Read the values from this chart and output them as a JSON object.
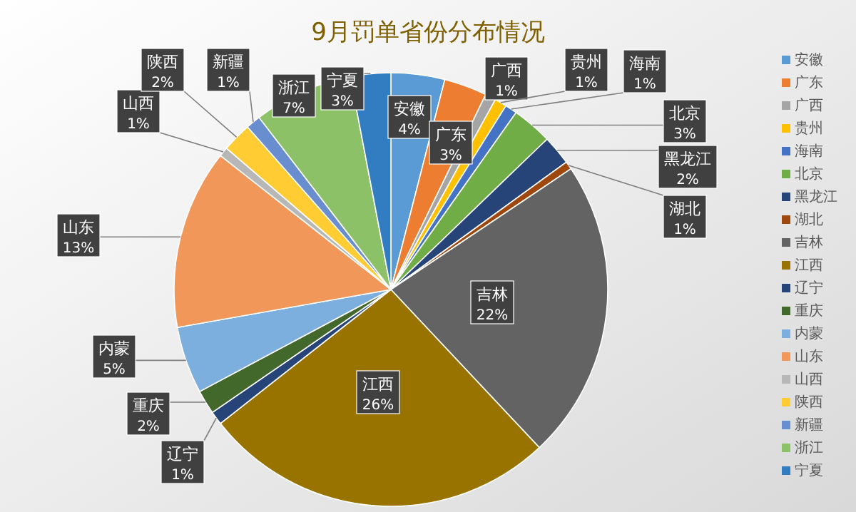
{
  "chart_data": {
    "type": "pie",
    "title": "9月罚单省份分布情况",
    "categories": [
      "安徽",
      "广东",
      "广西",
      "贵州",
      "海南",
      "北京",
      "黑龙江",
      "湖北",
      "吉林",
      "江西",
      "辽宁",
      "重庆",
      "内蒙",
      "山东",
      "山西",
      "陕西",
      "新疆",
      "浙江",
      "宁夏"
    ],
    "values": [
      4.0,
      3.2,
      0.8,
      0.9,
      0.9,
      3.0,
      2.2,
      0.6,
      22.4,
      26.4,
      1.0,
      1.8,
      5.0,
      13.4,
      0.7,
      2.2,
      1.1,
      7.4,
      3.0
    ],
    "value_labels": [
      "4%",
      "3%",
      "1%",
      "1%",
      "1%",
      "3%",
      "2%",
      "1%",
      "22%",
      "26%",
      "1%",
      "2%",
      "5%",
      "13%",
      "1%",
      "2%",
      "1%",
      "7%",
      "3%"
    ],
    "colors": [
      "#5b9bd5",
      "#ed7d31",
      "#a5a5a5",
      "#ffc000",
      "#4472c4",
      "#70ad47",
      "#264478",
      "#9e480e",
      "#636363",
      "#997300",
      "#264478",
      "#43682b",
      "#7cafdd",
      "#f1975a",
      "#b7b7b7",
      "#ffcd33",
      "#698ed0",
      "#8cc168",
      "#327dc2"
    ],
    "legend": "right"
  }
}
